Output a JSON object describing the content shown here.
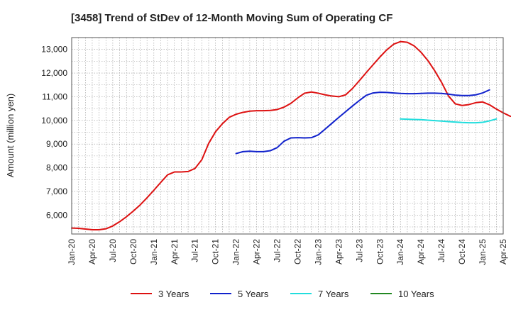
{
  "chart_data": {
    "type": "line",
    "title": "[3458]  Trend of StDev of 12-Month Moving Sum of Operating CF",
    "xlabel": "",
    "ylabel": "Amount (million yen)",
    "ylim": [
      5200,
      13500
    ],
    "yticks": [
      6000,
      7000,
      8000,
      9000,
      10000,
      11000,
      12000,
      13000
    ],
    "ytick_labels": [
      "6,000",
      "7,000",
      "8,000",
      "9,000",
      "10,000",
      "11,000",
      "12,000",
      "13,000"
    ],
    "x_start": "Jan-20",
    "xtick_labels": [
      "Jan-20",
      "Apr-20",
      "Jul-20",
      "Oct-20",
      "Jan-21",
      "Apr-21",
      "Jul-21",
      "Oct-21",
      "Jan-22",
      "Apr-22",
      "Jul-22",
      "Oct-22",
      "Jan-23",
      "Apr-23",
      "Jul-23",
      "Oct-23",
      "Jan-24",
      "Apr-24",
      "Jul-24",
      "Oct-24",
      "Jan-25",
      "Apr-25"
    ],
    "grid": true,
    "legend_position": "bottom",
    "series": [
      {
        "name": "3 Years",
        "color": "#dd1111",
        "start": "Jan-20",
        "values": [
          5450,
          5440,
          5410,
          5380,
          5380,
          5420,
          5540,
          5720,
          5930,
          6170,
          6430,
          6730,
          7050,
          7380,
          7700,
          7820,
          7820,
          7840,
          7970,
          8340,
          9030,
          9520,
          9860,
          10130,
          10260,
          10340,
          10390,
          10410,
          10410,
          10420,
          10460,
          10560,
          10720,
          10950,
          11150,
          11200,
          11150,
          11080,
          11030,
          11000,
          11080,
          11350,
          11680,
          12020,
          12350,
          12680,
          12980,
          13220,
          13330,
          13300,
          13150,
          12880,
          12530,
          12100,
          11610,
          11040,
          10700,
          10630,
          10670,
          10750,
          10780,
          10660,
          10480,
          10320,
          10180,
          10110,
          10100,
          10170,
          10310
        ]
      },
      {
        "name": "5 Years",
        "color": "#1122cc",
        "start": "Jan-22",
        "values": [
          8600,
          8680,
          8700,
          8680,
          8680,
          8720,
          8850,
          9120,
          9260,
          9270,
          9260,
          9270,
          9390,
          9630,
          9880,
          10130,
          10370,
          10610,
          10840,
          11060,
          11160,
          11190,
          11180,
          11160,
          11140,
          11130,
          11130,
          11140,
          11150,
          11150,
          11140,
          11110,
          11070,
          11050,
          11050,
          11080,
          11160,
          11290
        ]
      },
      {
        "name": "7 Years",
        "color": "#22dddd",
        "start": "Jan-24",
        "values": [
          10060,
          10050,
          10040,
          10030,
          10010,
          9990,
          9970,
          9950,
          9930,
          9910,
          9900,
          9900,
          9920,
          9980,
          10060
        ]
      },
      {
        "name": "10 Years",
        "color": "#228822",
        "start": "Jan-20",
        "values": []
      }
    ]
  }
}
